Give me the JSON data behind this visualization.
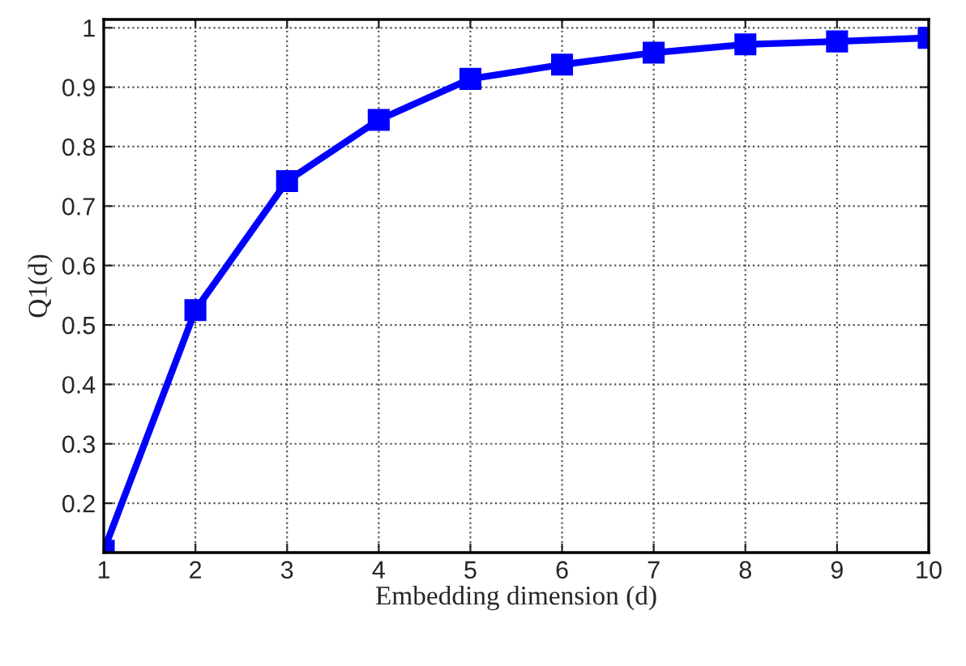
{
  "chart_data": {
    "type": "line",
    "xlabel": "Embedding dimension (d)",
    "ylabel": "Q1(d)",
    "x": [
      1,
      2,
      3,
      4,
      5,
      6,
      7,
      8,
      9,
      10
    ],
    "series": [
      {
        "color": "#0000ff",
        "values": [
          0.12,
          0.525,
          0.742,
          0.845,
          0.914,
          0.938,
          0.958,
          0.972,
          0.977,
          0.983
        ]
      }
    ],
    "xlim": [
      1,
      10
    ],
    "xticks": [
      1,
      2,
      3,
      4,
      5,
      6,
      7,
      8,
      9,
      10
    ],
    "ylim": [
      0.117,
      1.014
    ],
    "yticks": [
      0.2,
      0.3,
      0.4,
      0.5,
      0.6,
      0.7,
      0.8,
      0.9,
      1
    ],
    "grid": true,
    "marker": "square",
    "line_style": "solid"
  }
}
